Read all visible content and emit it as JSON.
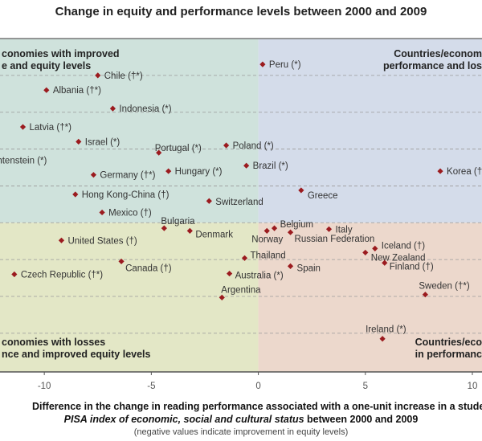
{
  "title": "Change in equity and performance levels between 2000 and 2009",
  "chart_data": {
    "type": "scatter",
    "title": "Change in equity and performance levels between 2000 and 2009",
    "xlabel_line1": "Difference in the change in reading performance associated with a one-unit increase in a student's",
    "xlabel_line2_italic": "PISA index of economic, social and cultural status",
    "xlabel_line2_rest": " between 2000 and 2009",
    "xlabel_note": "(negative values indicate improvement in equity levels)",
    "xlim": [
      -12.07,
      10.45
    ],
    "ylim": [
      -40.5,
      50
    ],
    "xticks": [
      -10,
      -5,
      0,
      5,
      10
    ],
    "xtick_labels": [
      "-10",
      "-5",
      "0",
      "5",
      "10"
    ],
    "y_gridlines": [
      40,
      30,
      20,
      10,
      0,
      -10,
      -20,
      -30
    ],
    "grid": "horizontal dashed",
    "marker_color": "#9b1b1f",
    "quadrant_colors": {
      "top_left": "#cfe2dc",
      "top_right": "#d4dcea",
      "bottom_left": "#e3e7c6",
      "bottom_right": "#ecd8cc"
    },
    "quadrant_labels": {
      "top_left": [
        "conomies with improved",
        "e and equity levels"
      ],
      "top_right": [
        "Countries/econom",
        "performance and los"
      ],
      "bottom_left": [
        "conomies with losses",
        "nce and improved equity levels"
      ],
      "bottom_right": [
        "Countries/eco",
        "in performanc"
      ]
    },
    "points": [
      {
        "label": "Peru (*)",
        "x": 0.2,
        "y": 43
      },
      {
        "label": "Chile (†*)",
        "x": -7.5,
        "y": 40
      },
      {
        "label": "Albania (†*)",
        "x": -9.9,
        "y": 36
      },
      {
        "label": "Indonesia (*)",
        "x": -6.8,
        "y": 31
      },
      {
        "label": "Latvia (†*)",
        "x": -11.0,
        "y": 26
      },
      {
        "label": "Israel (*)",
        "x": -8.4,
        "y": 22
      },
      {
        "label": "Portugal (*)",
        "x": -4.65,
        "y": 19
      },
      {
        "label": "Poland (*)",
        "x": -1.5,
        "y": 21
      },
      {
        "label": "Liechtenstein (*)",
        "x": -13.3,
        "y": 17
      },
      {
        "label": "Germany (†*)",
        "x": -7.7,
        "y": 13
      },
      {
        "label": "Hungary (*)",
        "x": -4.2,
        "y": 14
      },
      {
        "label": "Brazil (*)",
        "x": -0.56,
        "y": 15.5
      },
      {
        "label": "Korea (†",
        "x": 8.5,
        "y": 14
      },
      {
        "label": "Hong Kong-China (†)",
        "x": -8.55,
        "y": 7.7
      },
      {
        "label": "Switzerland",
        "x": -2.3,
        "y": 5.9
      },
      {
        "label": "Greece",
        "x": 2.0,
        "y": 8.8
      },
      {
        "label": "Mexico (†)",
        "x": -7.3,
        "y": 2.8
      },
      {
        "label": "Bulgaria",
        "x": -4.4,
        "y": -1.5
      },
      {
        "label": "Denmark",
        "x": -3.2,
        "y": -2.2
      },
      {
        "label": "United States (†)",
        "x": -9.2,
        "y": -4.8
      },
      {
        "label": "Canada (†)",
        "x": -6.4,
        "y": -10.5
      },
      {
        "label": "Czech Republic (†*)",
        "x": -11.4,
        "y": -14
      },
      {
        "label": "Australia (*)",
        "x": -1.35,
        "y": -13.8
      },
      {
        "label": "Argentina",
        "x": -1.7,
        "y": -20.3
      },
      {
        "label": "Thailand",
        "x": -0.64,
        "y": -9.6
      },
      {
        "label": "Norway",
        "x": 0.4,
        "y": -2.2
      },
      {
        "label": "Belgium",
        "x": 0.75,
        "y": -1.5
      },
      {
        "label": "Russian Federation",
        "x": 1.5,
        "y": -2.6
      },
      {
        "label": "Italy",
        "x": 3.3,
        "y": -1.75
      },
      {
        "label": "Iceland (†)",
        "x": 5.45,
        "y": -7
      },
      {
        "label": "New Zealand",
        "x": 5.0,
        "y": -8.1
      },
      {
        "label": "Finland (†)",
        "x": 5.9,
        "y": -10.9
      },
      {
        "label": "Spain",
        "x": 1.5,
        "y": -11.8
      },
      {
        "label": "Sweden (†*)",
        "x": 7.8,
        "y": -19.5
      },
      {
        "label": "Ireland (*)",
        "x": 5.8,
        "y": -31.5
      }
    ]
  }
}
